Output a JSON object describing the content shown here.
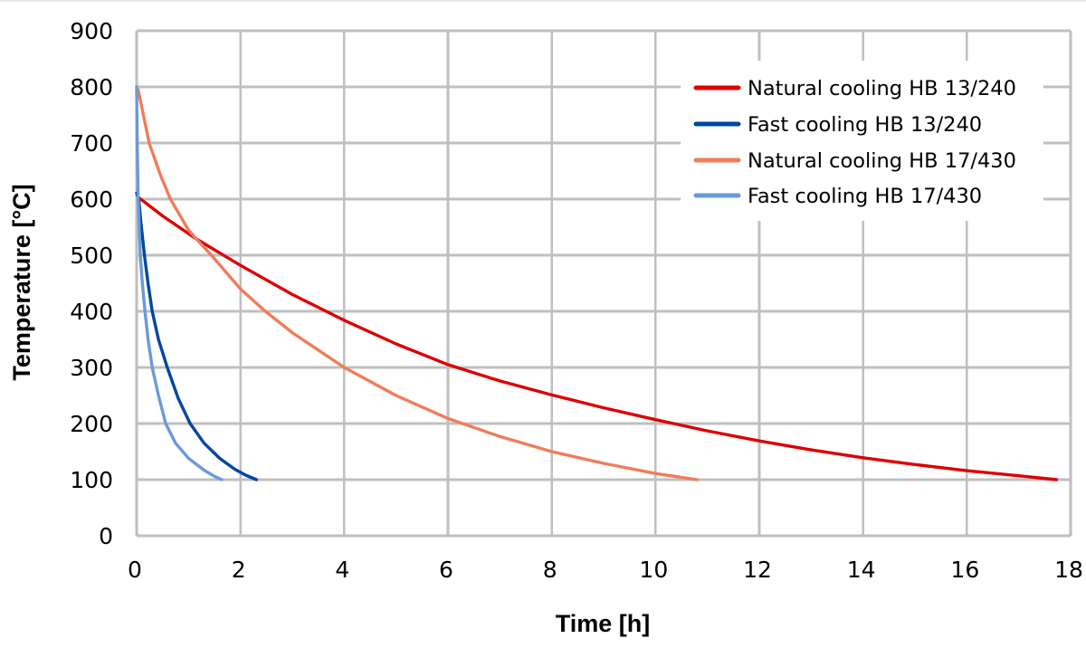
{
  "chart_data": {
    "type": "line",
    "title": "",
    "xlabel": "Time [h]",
    "ylabel": "Temperature [°C]",
    "xlim": [
      0,
      18
    ],
    "ylim": [
      0,
      900
    ],
    "xticks": [
      0,
      2,
      4,
      6,
      8,
      10,
      12,
      14,
      16,
      18
    ],
    "xtick_labels": [
      "0",
      "2",
      "4",
      "6",
      "8",
      "10",
      "12",
      "14",
      "16",
      "18"
    ],
    "yticks": [
      0,
      100,
      200,
      300,
      400,
      500,
      600,
      700,
      800,
      900
    ],
    "ytick_labels": [
      "0",
      "100",
      "200",
      "300",
      "400",
      "500",
      "600",
      "700",
      "800",
      "900"
    ],
    "grid": true,
    "legend_position": "top-right",
    "series": [
      {
        "name": "Natural cooling HB 13/240",
        "color": "#dd0000",
        "points": [
          [
            0.05,
            602
          ],
          [
            0.5,
            570
          ],
          [
            1.15,
            529
          ],
          [
            2,
            482
          ],
          [
            3,
            430
          ],
          [
            4,
            384
          ],
          [
            5,
            342
          ],
          [
            6,
            305
          ],
          [
            7,
            276
          ],
          [
            8,
            251
          ],
          [
            9,
            228
          ],
          [
            10,
            207
          ],
          [
            11,
            187
          ],
          [
            12,
            169
          ],
          [
            13,
            153
          ],
          [
            14,
            139
          ],
          [
            15,
            127
          ],
          [
            16,
            116
          ],
          [
            17,
            107
          ],
          [
            17.73,
            100
          ]
        ]
      },
      {
        "name": "Fast cooling HB 13/240",
        "color": "#00479e",
        "points": [
          [
            0,
            611
          ],
          [
            0.04,
            600
          ],
          [
            0.08,
            560
          ],
          [
            0.15,
            500
          ],
          [
            0.22,
            450
          ],
          [
            0.3,
            400
          ],
          [
            0.42,
            350
          ],
          [
            0.59,
            300
          ],
          [
            0.8,
            245
          ],
          [
            1.03,
            200
          ],
          [
            1.3,
            165
          ],
          [
            1.6,
            138
          ],
          [
            1.9,
            118
          ],
          [
            2.1,
            108
          ],
          [
            2.31,
            100
          ]
        ]
      },
      {
        "name": "Natural cooling HB 17/430",
        "color": "#f07c5a",
        "points": [
          [
            0.03,
            795
          ],
          [
            0.24,
            700
          ],
          [
            0.45,
            645
          ],
          [
            0.65,
            600
          ],
          [
            1.0,
            545
          ],
          [
            1.15,
            529
          ],
          [
            1.44,
            500
          ],
          [
            2,
            440
          ],
          [
            2.48,
            400
          ],
          [
            3,
            362
          ],
          [
            4,
            300
          ],
          [
            5,
            250
          ],
          [
            6,
            209
          ],
          [
            7,
            177
          ],
          [
            8,
            150
          ],
          [
            9,
            129
          ],
          [
            10,
            111
          ],
          [
            10.8,
            100
          ]
        ]
      },
      {
        "name": "Fast cooling HB 17/430",
        "color": "#6a9ad8",
        "points": [
          [
            0,
            800
          ],
          [
            0.01,
            700
          ],
          [
            0.03,
            600
          ],
          [
            0.07,
            500
          ],
          [
            0.11,
            450
          ],
          [
            0.16,
            400
          ],
          [
            0.22,
            350
          ],
          [
            0.3,
            300
          ],
          [
            0.42,
            250
          ],
          [
            0.56,
            200
          ],
          [
            0.75,
            165
          ],
          [
            1.0,
            138
          ],
          [
            1.3,
            117
          ],
          [
            1.5,
            106
          ],
          [
            1.64,
            100
          ]
        ]
      }
    ]
  }
}
